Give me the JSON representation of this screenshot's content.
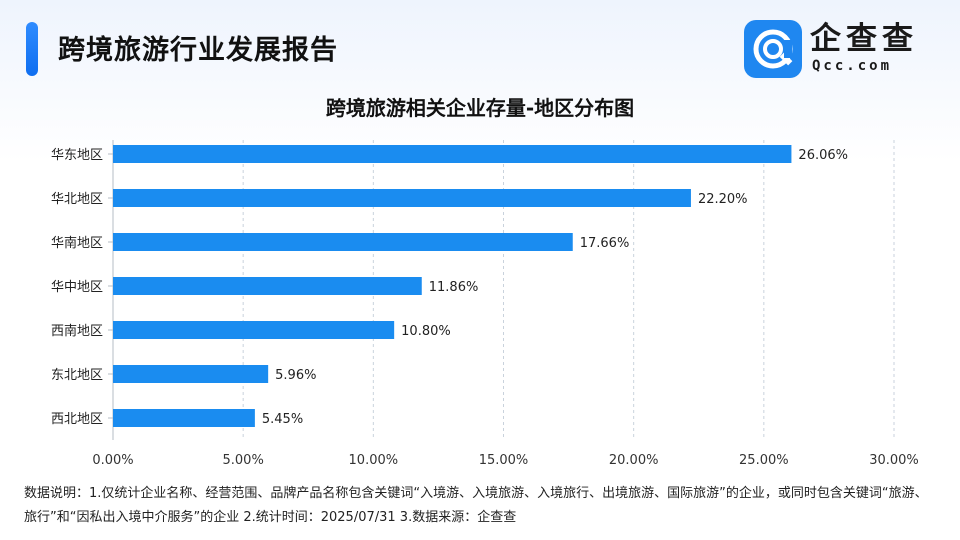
{
  "header": {
    "title": "跨境旅游行业发展报告"
  },
  "logo": {
    "name": "企查查",
    "domain": "Qcc.com",
    "icon": "qcc-logo-icon",
    "color": "#1f87f0"
  },
  "chart_data": {
    "type": "bar",
    "orientation": "horizontal",
    "title": "跨境旅游相关企业存量-地区分布图",
    "categories": [
      "华东地区",
      "华北地区",
      "华南地区",
      "华中地区",
      "西南地区",
      "东北地区",
      "西北地区"
    ],
    "values": [
      26.06,
      22.2,
      17.66,
      11.86,
      10.8,
      5.96,
      5.45
    ],
    "value_labels": [
      "26.06%",
      "22.20%",
      "17.66%",
      "11.86%",
      "10.80%",
      "5.96%",
      "5.45%"
    ],
    "xlim": [
      0,
      30
    ],
    "xticks": [
      "0.00%",
      "5.00%",
      "10.00%",
      "15.00%",
      "20.00%",
      "25.00%",
      "30.00%"
    ],
    "xlabel": "",
    "ylabel": "",
    "grid": "vertical dashed",
    "bar_color": "#1a8cf0"
  },
  "footnote": {
    "text": "数据说明：1.仅统计企业名称、经营范围、品牌产品名称包含关键词“入境游、入境旅游、入境旅行、出境旅游、国际旅游”的企业，或同时包含关键词“旅游、旅行”和“因私出入境中介服务”的企业  2.统计时间：2025/07/31   3.数据来源：企查查"
  }
}
